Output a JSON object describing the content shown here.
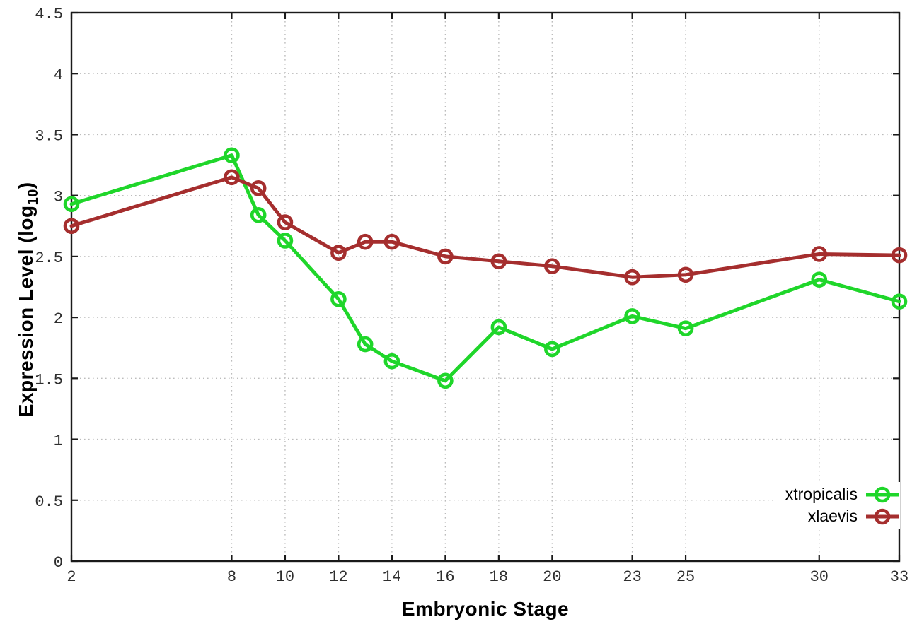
{
  "chart_data": {
    "type": "line",
    "title": "",
    "xlabel": "Embryonic Stage",
    "ylabel": "Expression Level (log10)",
    "ylabel_parts": {
      "prefix": "Expression Level (log",
      "sub": "10",
      "suffix": ")"
    },
    "x": [
      2,
      8,
      9,
      10,
      12,
      13,
      14,
      16,
      18,
      20,
      23,
      25,
      30,
      33
    ],
    "x_tick_labels": [
      2,
      8,
      10,
      12,
      14,
      16,
      18,
      20,
      23,
      25,
      30,
      33
    ],
    "y_ticks": [
      0,
      0.5,
      1,
      1.5,
      2,
      2.5,
      3,
      3.5,
      4,
      4.5
    ],
    "xlim": [
      2,
      33
    ],
    "ylim": [
      0,
      4.5
    ],
    "grid": true,
    "grid_style": "dotted",
    "legend_position": "bottom-right",
    "marker": "open-circle",
    "series": [
      {
        "name": "xtropicalis",
        "color": "#1fd62a",
        "values": [
          2.93,
          3.33,
          2.84,
          2.63,
          2.15,
          1.78,
          1.64,
          1.48,
          1.92,
          1.74,
          2.01,
          1.91,
          2.31,
          2.13
        ]
      },
      {
        "name": "xlaevis",
        "color": "#a52e2e",
        "values": [
          2.75,
          3.15,
          3.06,
          2.78,
          2.53,
          2.62,
          2.62,
          2.5,
          2.46,
          2.42,
          2.33,
          2.35,
          2.52,
          2.51
        ]
      }
    ]
  },
  "colors": {
    "background": "#ffffff",
    "plot_border": "#1a1a1a",
    "grid_line": "#bcbcbc",
    "tick_text": "#2e2e2e",
    "axis_title_text": "#000000"
  }
}
